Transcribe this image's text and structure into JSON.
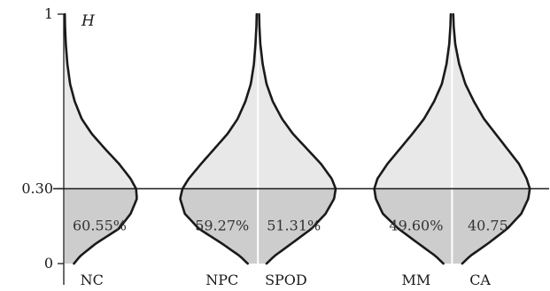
{
  "chart_data": {
    "type": "area",
    "title": "",
    "ylabel": "H",
    "xlabel": "",
    "ylim": [
      0,
      1
    ],
    "yticks": [
      {
        "value": 0,
        "label": "0"
      },
      {
        "value": 0.3,
        "label": "0.30"
      },
      {
        "value": 1,
        "label": "1"
      }
    ],
    "threshold": 0.3,
    "grid": false,
    "legend": "none",
    "colors": {
      "upper_fill": "#e8e8e8",
      "lower_fill": "#cdcdcd",
      "outline": "#1a1a1a"
    },
    "series": [
      {
        "name": "NC",
        "orientation": "right",
        "annotation": "60.55%",
        "percent_below_threshold": 60.55,
        "profile": [
          [
            0.0,
            0.12
          ],
          [
            0.03,
            0.2
          ],
          [
            0.08,
            0.4
          ],
          [
            0.14,
            0.7
          ],
          [
            0.2,
            0.85
          ],
          [
            0.26,
            0.93
          ],
          [
            0.3,
            0.92
          ],
          [
            0.34,
            0.85
          ],
          [
            0.4,
            0.7
          ],
          [
            0.46,
            0.52
          ],
          [
            0.52,
            0.35
          ],
          [
            0.58,
            0.22
          ],
          [
            0.65,
            0.13
          ],
          [
            0.72,
            0.07
          ],
          [
            0.8,
            0.035
          ],
          [
            0.88,
            0.015
          ],
          [
            0.95,
            0.005
          ],
          [
            1.0,
            0.002
          ]
        ]
      },
      {
        "name": "NPC",
        "orientation": "left",
        "annotation": "59.27%",
        "percent_below_threshold": 59.27,
        "profile": [
          [
            0.0,
            0.12
          ],
          [
            0.03,
            0.22
          ],
          [
            0.08,
            0.45
          ],
          [
            0.14,
            0.75
          ],
          [
            0.2,
            0.93
          ],
          [
            0.26,
            0.99
          ],
          [
            0.3,
            0.96
          ],
          [
            0.34,
            0.88
          ],
          [
            0.4,
            0.72
          ],
          [
            0.46,
            0.55
          ],
          [
            0.52,
            0.38
          ],
          [
            0.58,
            0.25
          ],
          [
            0.65,
            0.15
          ],
          [
            0.72,
            0.08
          ],
          [
            0.8,
            0.04
          ],
          [
            0.88,
            0.02
          ],
          [
            0.95,
            0.008
          ],
          [
            1.0,
            0.004
          ]
        ]
      },
      {
        "name": "SPOD",
        "orientation": "right",
        "annotation": "51.31%",
        "percent_below_threshold": 51.31,
        "profile": [
          [
            0.0,
            0.1
          ],
          [
            0.03,
            0.2
          ],
          [
            0.08,
            0.42
          ],
          [
            0.14,
            0.68
          ],
          [
            0.2,
            0.86
          ],
          [
            0.26,
            0.97
          ],
          [
            0.3,
            0.99
          ],
          [
            0.34,
            0.94
          ],
          [
            0.4,
            0.8
          ],
          [
            0.46,
            0.62
          ],
          [
            0.52,
            0.44
          ],
          [
            0.58,
            0.3
          ],
          [
            0.65,
            0.18
          ],
          [
            0.72,
            0.1
          ],
          [
            0.8,
            0.05
          ],
          [
            0.88,
            0.02
          ],
          [
            0.95,
            0.008
          ],
          [
            1.0,
            0.004
          ]
        ]
      },
      {
        "name": "MM",
        "orientation": "left",
        "annotation": "49.60%",
        "percent_below_threshold": 49.6,
        "profile": [
          [
            0.0,
            0.1
          ],
          [
            0.03,
            0.2
          ],
          [
            0.08,
            0.42
          ],
          [
            0.14,
            0.68
          ],
          [
            0.2,
            0.88
          ],
          [
            0.26,
            0.97
          ],
          [
            0.3,
            0.99
          ],
          [
            0.34,
            0.95
          ],
          [
            0.4,
            0.82
          ],
          [
            0.46,
            0.66
          ],
          [
            0.52,
            0.5
          ],
          [
            0.58,
            0.35
          ],
          [
            0.65,
            0.22
          ],
          [
            0.72,
            0.12
          ],
          [
            0.8,
            0.06
          ],
          [
            0.88,
            0.025
          ],
          [
            0.95,
            0.01
          ],
          [
            1.0,
            0.005
          ]
        ]
      },
      {
        "name": "CA",
        "orientation": "right",
        "annotation": "40.75",
        "percent_below_threshold": 40.75,
        "profile": [
          [
            0.0,
            0.12
          ],
          [
            0.03,
            0.22
          ],
          [
            0.08,
            0.45
          ],
          [
            0.14,
            0.7
          ],
          [
            0.2,
            0.88
          ],
          [
            0.26,
            0.97
          ],
          [
            0.3,
            0.99
          ],
          [
            0.34,
            0.95
          ],
          [
            0.4,
            0.85
          ],
          [
            0.46,
            0.7
          ],
          [
            0.52,
            0.55
          ],
          [
            0.58,
            0.4
          ],
          [
            0.65,
            0.27
          ],
          [
            0.72,
            0.16
          ],
          [
            0.8,
            0.08
          ],
          [
            0.88,
            0.03
          ],
          [
            0.95,
            0.01
          ],
          [
            1.0,
            0.004
          ]
        ]
      }
    ]
  }
}
